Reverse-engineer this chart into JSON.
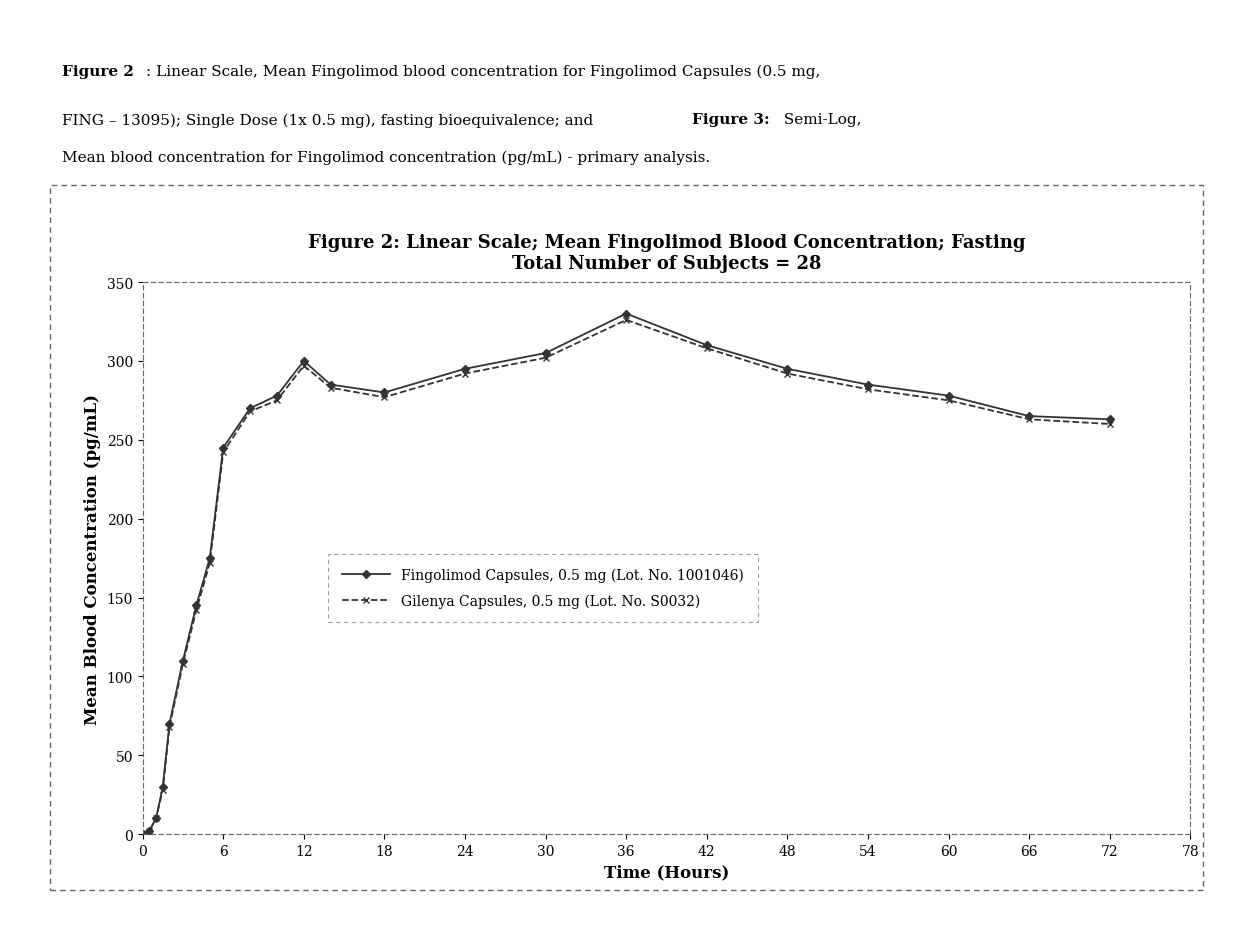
{
  "title_line1": "Figure 2: Linear Scale; Mean Fingolimod Blood Concentration; Fasting",
  "title_line2": "Total Number of Subjects = 28",
  "xlabel": "Time (Hours)",
  "ylabel": "Mean Blood Concentration (pg/mL)",
  "caption_bold1": "Figure 2",
  "caption_normal1": ": Linear Scale, Mean Fingolimod blood concentration for Fingolimod Capsules (0.5 mg,\nFING – 13095); Single Dose (1x 0.5 mg), fasting bioequivalence; and ",
  "caption_bold2": "Figure 3:",
  "caption_normal2": " Semi-Log,\nMean blood concentration for Fingolimod concentration (pg/mL) - primary analysis.",
  "xlim": [
    0,
    78
  ],
  "ylim": [
    0,
    350
  ],
  "xticks": [
    0,
    6,
    12,
    18,
    24,
    30,
    36,
    42,
    48,
    54,
    60,
    66,
    72,
    78
  ],
  "yticks": [
    0,
    50,
    100,
    150,
    200,
    250,
    300,
    350
  ],
  "legend_label1": "Fingolimod Capsules, 0.5 mg (Lot. No. 1001046)",
  "legend_label2": "Gilenya Capsules, 0.5 mg (Lot. No. S0032)",
  "time": [
    0,
    0.5,
    1,
    1.5,
    2,
    3,
    4,
    5,
    6,
    8,
    10,
    12,
    14,
    18,
    24,
    30,
    36,
    42,
    48,
    54,
    60,
    66,
    72
  ],
  "conc1": [
    0,
    2,
    10,
    30,
    70,
    110,
    145,
    175,
    245,
    270,
    278,
    300,
    285,
    280,
    295,
    305,
    330,
    310,
    295,
    285,
    278,
    265,
    263
  ],
  "conc2": [
    0,
    2,
    10,
    28,
    68,
    108,
    142,
    172,
    242,
    268,
    275,
    297,
    283,
    277,
    292,
    302,
    326,
    308,
    292,
    282,
    275,
    263,
    260
  ],
  "line_color": "#333333",
  "background_color": "#ffffff",
  "plot_bg_color": "#ffffff",
  "border_color": "#555555",
  "title_fontsize": 13,
  "axis_label_fontsize": 12,
  "tick_fontsize": 10,
  "caption_fontsize": 11
}
